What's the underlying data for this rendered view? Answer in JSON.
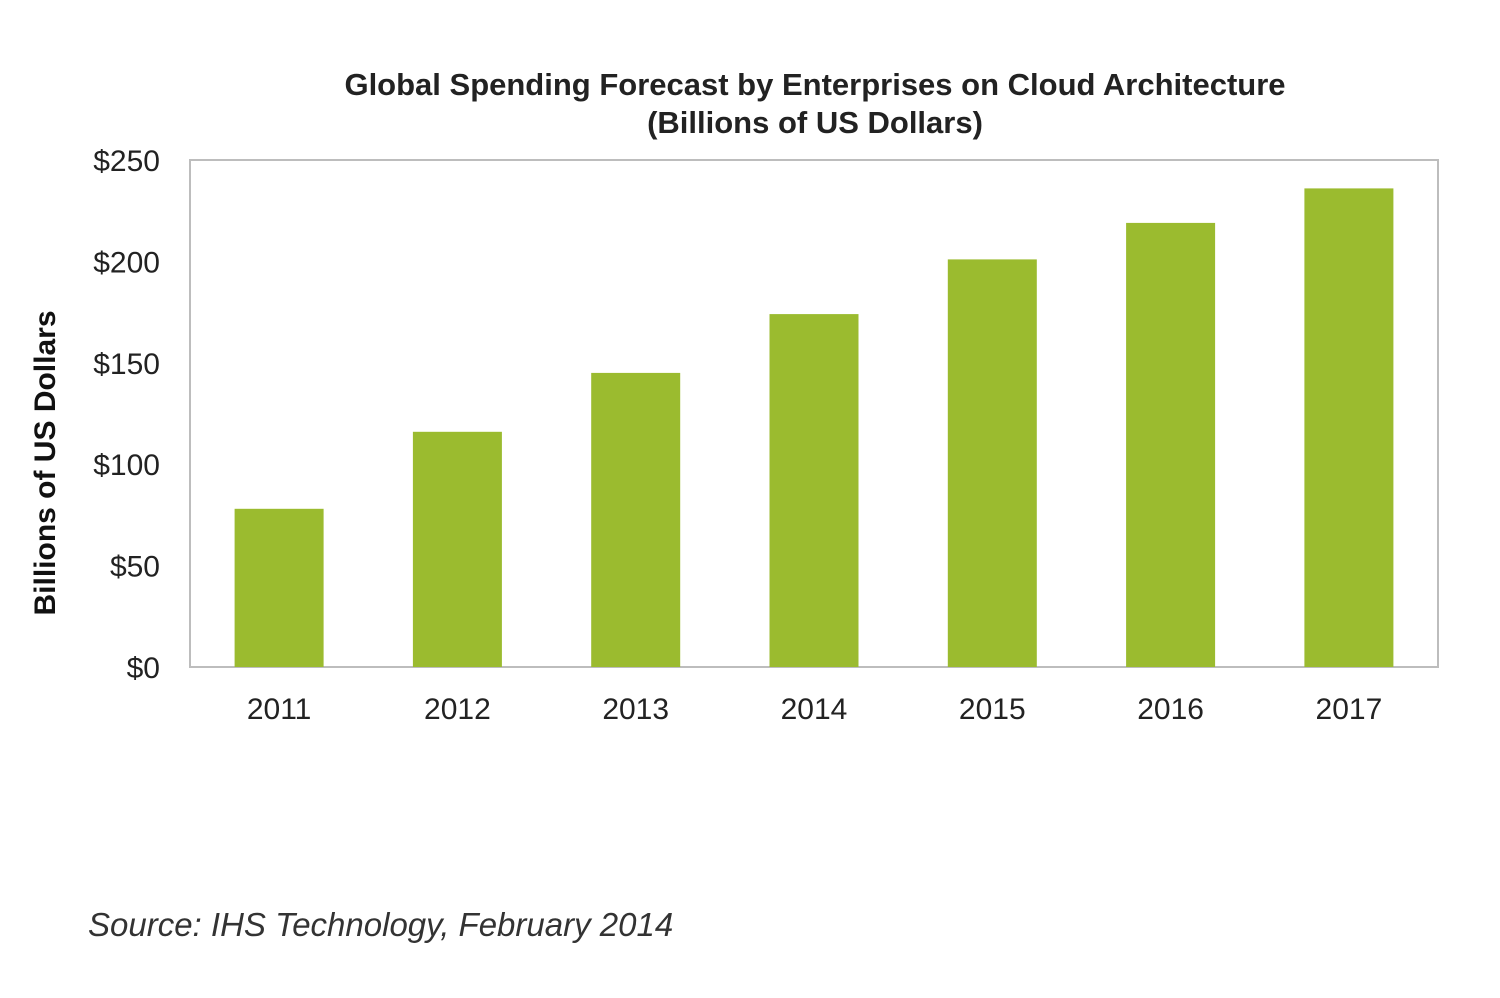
{
  "chart_data": {
    "type": "bar",
    "title": "Global Spending Forecast by Enterprises on Cloud Architecture",
    "subtitle": "(Billions of US Dollars)",
    "xlabel": "",
    "ylabel": "Billions of US Dollars",
    "categories": [
      "2011",
      "2012",
      "2013",
      "2014",
      "2015",
      "2016",
      "2017"
    ],
    "values": [
      78,
      116,
      145,
      174,
      201,
      219,
      236
    ],
    "ylim": [
      0,
      250
    ],
    "yticks": [
      0,
      50,
      100,
      150,
      200,
      250
    ],
    "ytick_labels": [
      "$0",
      "$50",
      "$100",
      "$150",
      "$200",
      "$250"
    ],
    "bar_color": "#9bbb2f",
    "grid": false,
    "legend": "none"
  },
  "source": "Source: IHS Technology, February 2014"
}
